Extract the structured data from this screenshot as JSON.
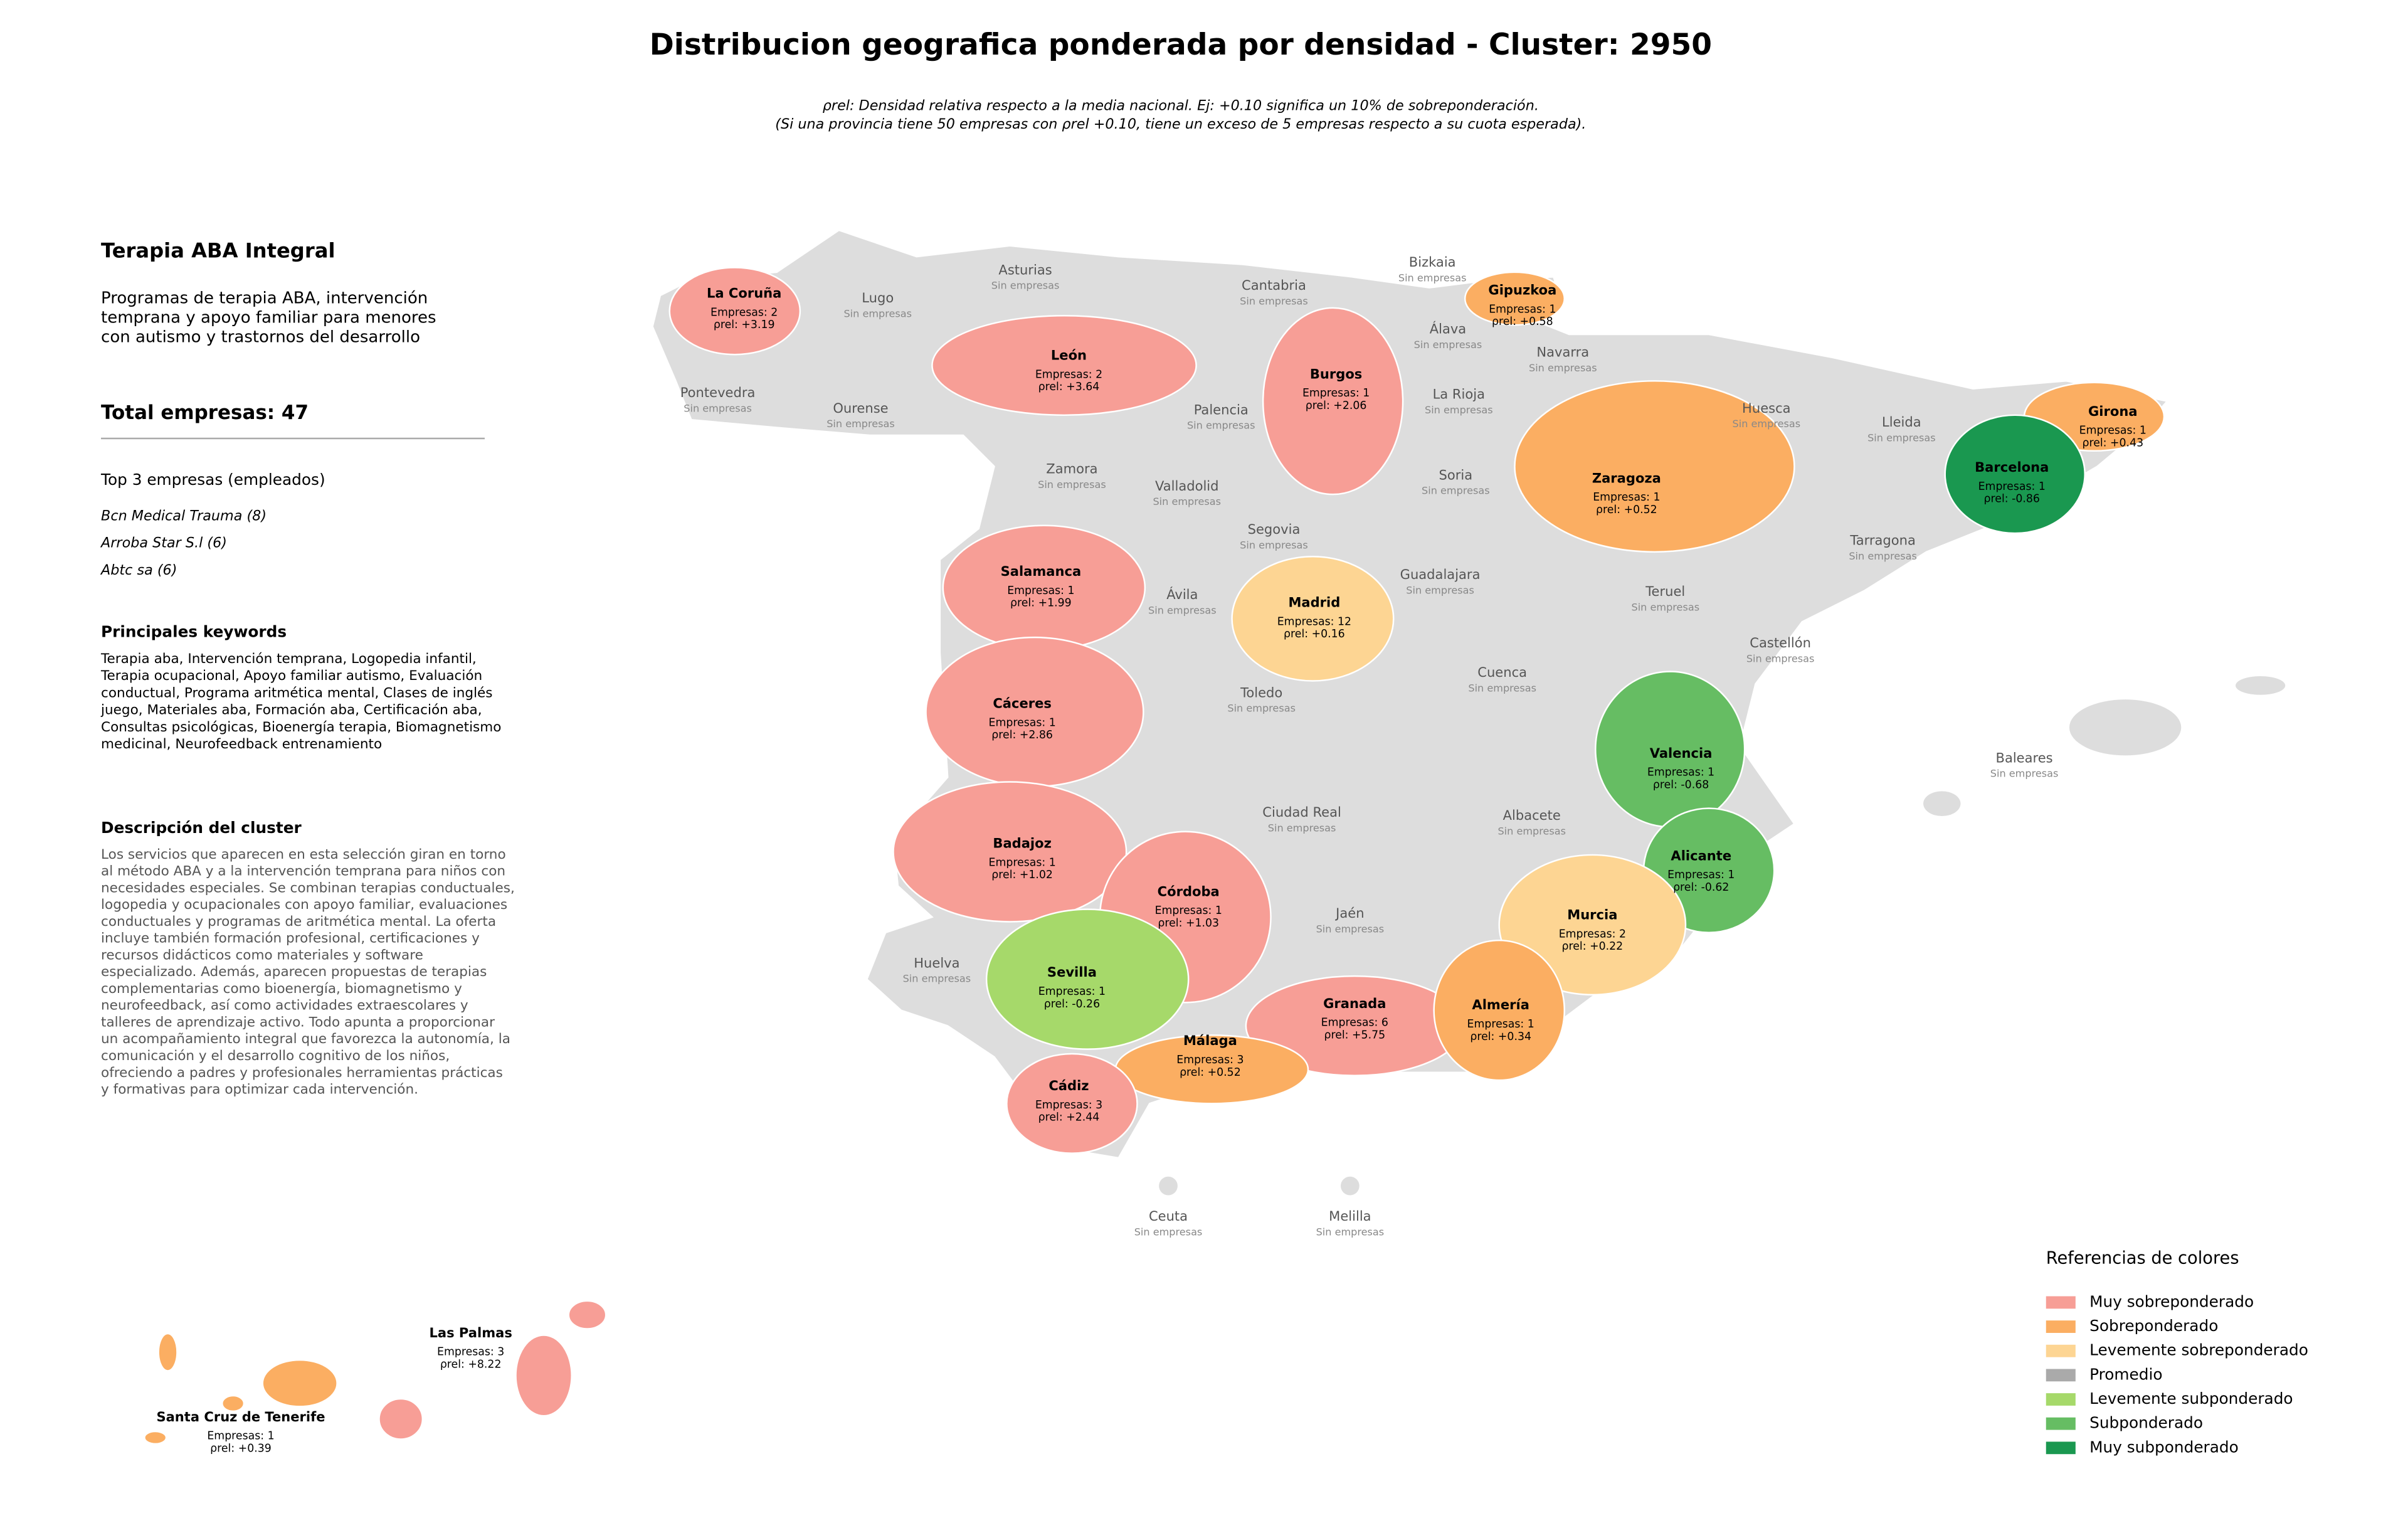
{
  "title": "Distribucion geografica ponderada por densidad - Cluster: 2950",
  "subtitle": [
    "ρrel: Densidad relativa respecto a la media nacional. Ej: +0.10 significa un 10% de sobreponderación.",
    "(Si una provincia tiene 50 empresas con ρrel +0.10, tiene un exceso de 5 empresas respecto a su cuota esperada)."
  ],
  "panel": {
    "name": "Terapia ABA Integral",
    "summary": [
      "Programas de terapia ABA, intervención",
      "temprana y apoyo familiar para menores",
      "con autismo y trastornos del desarrollo"
    ],
    "total": "Total empresas: 47",
    "top_title": "Top 3 empresas (empleados)",
    "top": [
      "Bcn Medical Trauma (8)",
      "Arroba Star S.l (6)",
      "Abtc sa (6)"
    ],
    "keywords_title": "Principales keywords",
    "keywords": [
      "Terapia aba, Intervención temprana, Logopedia infantil,",
      "Terapia ocupacional, Apoyo familiar autismo, Evaluación",
      "conductual, Programa aritmética mental, Clases de inglés",
      "juego, Materiales aba, Formación aba, Certificación aba,",
      "Consultas psicológicas, Bioenergía terapia, Biomagnetismo",
      "medicinal, Neurofeedback entrenamiento"
    ],
    "description_title": "Descripción del cluster",
    "description": [
      "Los servicios que aparecen en esta selección giran en torno",
      "al método ABA y a la intervención temprana para niños con",
      "necesidades especiales. Se combinan terapias conductuales,",
      "logopedia y ocupacionales con apoyo familiar, evaluaciones",
      "conductuales y programas de aritmética mental. La oferta",
      "incluye también formación profesional, certificaciones y",
      "recursos didácticos como materiales y software",
      "especializado. Además, aparecen propuestas de terapias",
      "complementarias como bioenergía, biomagnetismo y",
      "neurofeedback, así como actividades extraescolares y",
      "talleres de aprendizaje activo. Todo apunta a proporcionar",
      "un acompañamiento integral que favorezca la autonomía, la",
      "comunicación y el desarrollo cognitivo de los niños,",
      "ofreciendo a padres y profesionales herramientas prácticas",
      "y formativas para optimizar cada intervención."
    ]
  },
  "map": {
    "provinces": [
      {
        "name": "La Coruña",
        "color": "#f79e96",
        "empresas": "Empresas: 2",
        "rho": "ρrel: +3.19"
      },
      {
        "name": "Lugo",
        "note": "Sin empresas"
      },
      {
        "name": "Asturias",
        "note": "Sin empresas"
      },
      {
        "name": "Cantabria",
        "note": "Sin empresas"
      },
      {
        "name": "Bizkaia",
        "note": "Sin empresas"
      },
      {
        "name": "Gipuzkoa",
        "color": "#fbae62",
        "empresas": "Empresas: 1",
        "rho": "ρrel: +0.58"
      },
      {
        "name": "Álava",
        "note": "Sin empresas"
      },
      {
        "name": "Navarra",
        "note": "Sin empresas"
      },
      {
        "name": "León",
        "color": "#f79e96",
        "empresas": "Empresas: 2",
        "rho": "ρrel: +3.64"
      },
      {
        "name": "Burgos",
        "color": "#f79e96",
        "empresas": "Empresas: 1",
        "rho": "ρrel: +2.06"
      },
      {
        "name": "Pontevedra",
        "note": "Sin empresas"
      },
      {
        "name": "Ourense",
        "note": "Sin empresas"
      },
      {
        "name": "Palencia",
        "note": "Sin empresas"
      },
      {
        "name": "La Rioja",
        "note": "Sin empresas"
      },
      {
        "name": "Huesca",
        "note": "Sin empresas"
      },
      {
        "name": "Lleida",
        "note": "Sin empresas"
      },
      {
        "name": "Girona",
        "color": "#fbae62",
        "empresas": "Empresas: 1",
        "rho": "ρrel: +0.43"
      },
      {
        "name": "Barcelona",
        "color": "#1a9850",
        "empresas": "Empresas: 1",
        "rho": "ρrel: -0.86"
      },
      {
        "name": "Zaragoza",
        "color": "#fbae62",
        "empresas": "Empresas: 1",
        "rho": "ρrel: +0.52"
      },
      {
        "name": "Zamora",
        "note": "Sin empresas"
      },
      {
        "name": "Valladolid",
        "note": "Sin empresas"
      },
      {
        "name": "Soria",
        "note": "Sin empresas"
      },
      {
        "name": "Segovia",
        "note": "Sin empresas"
      },
      {
        "name": "Tarragona",
        "note": "Sin empresas"
      },
      {
        "name": "Salamanca",
        "color": "#f79e96",
        "empresas": "Empresas: 1",
        "rho": "ρrel: +1.99"
      },
      {
        "name": "Ávila",
        "note": "Sin empresas"
      },
      {
        "name": "Madrid",
        "color": "#fdd593",
        "empresas": "Empresas: 12",
        "rho": "ρrel: +0.16"
      },
      {
        "name": "Guadalajara",
        "note": "Sin empresas"
      },
      {
        "name": "Teruel",
        "note": "Sin empresas"
      },
      {
        "name": "Castellón",
        "note": "Sin empresas"
      },
      {
        "name": "Cuenca",
        "note": "Sin empresas"
      },
      {
        "name": "Toledo",
        "note": "Sin empresas"
      },
      {
        "name": "Cáceres",
        "color": "#f79e96",
        "empresas": "Empresas: 1",
        "rho": "ρrel: +2.86"
      },
      {
        "name": "Valencia",
        "color": "#66bd63",
        "empresas": "Empresas: 1",
        "rho": "ρrel: -0.68"
      },
      {
        "name": "Baleares",
        "note": "Sin empresas"
      },
      {
        "name": "Ciudad Real",
        "note": "Sin empresas"
      },
      {
        "name": "Albacete",
        "note": "Sin empresas"
      },
      {
        "name": "Badajoz",
        "color": "#f79e96",
        "empresas": "Empresas: 1",
        "rho": "ρrel: +1.02"
      },
      {
        "name": "Alicante",
        "color": "#66bd63",
        "empresas": "Empresas: 1",
        "rho": "ρrel: -0.62"
      },
      {
        "name": "Córdoba",
        "color": "#f79e96",
        "empresas": "Empresas: 1",
        "rho": "ρrel: +1.03"
      },
      {
        "name": "Jaén",
        "note": "Sin empresas"
      },
      {
        "name": "Murcia",
        "color": "#fdd593",
        "empresas": "Empresas: 2",
        "rho": "ρrel: +0.22"
      },
      {
        "name": "Huelva",
        "note": "Sin empresas"
      },
      {
        "name": "Sevilla",
        "color": "#a6d96a",
        "empresas": "Empresas: 1",
        "rho": "ρrel: -0.26"
      },
      {
        "name": "Granada",
        "color": "#f79e96",
        "empresas": "Empresas: 6",
        "rho": "ρrel: +5.75"
      },
      {
        "name": "Almería",
        "color": "#fbae62",
        "empresas": "Empresas: 1",
        "rho": "ρrel: +0.34"
      },
      {
        "name": "Málaga",
        "color": "#fbae62",
        "empresas": "Empresas: 3",
        "rho": "ρrel: +0.52"
      },
      {
        "name": "Cádiz",
        "color": "#f79e96",
        "empresas": "Empresas: 3",
        "rho": "ρrel: +2.44"
      },
      {
        "name": "Ceuta",
        "note": "Sin empresas"
      },
      {
        "name": "Melilla",
        "note": "Sin empresas"
      },
      {
        "name": "Las Palmas",
        "color": "#f79e96",
        "empresas": "Empresas: 3",
        "rho": "ρrel: +8.22"
      },
      {
        "name": "Santa Cruz de Tenerife",
        "color": "#fbae62",
        "empresas": "Empresas: 1",
        "rho": "ρrel: +0.39"
      }
    ]
  },
  "legend": {
    "title": "Referencias de colores",
    "items": [
      {
        "name": "Muy sobreponderado",
        "color": "#f79e96"
      },
      {
        "name": "Sobreponderado",
        "color": "#fbae62"
      },
      {
        "name": "Levemente sobreponderado",
        "color": "#fdd593"
      },
      {
        "name": "Promedio",
        "color": "#aaaaaa"
      },
      {
        "name": "Levemente subponderado",
        "color": "#a6d96a"
      },
      {
        "name": "Subponderado",
        "color": "#66bd63"
      },
      {
        "name": "Muy subponderado",
        "color": "#1a9850"
      }
    ]
  }
}
